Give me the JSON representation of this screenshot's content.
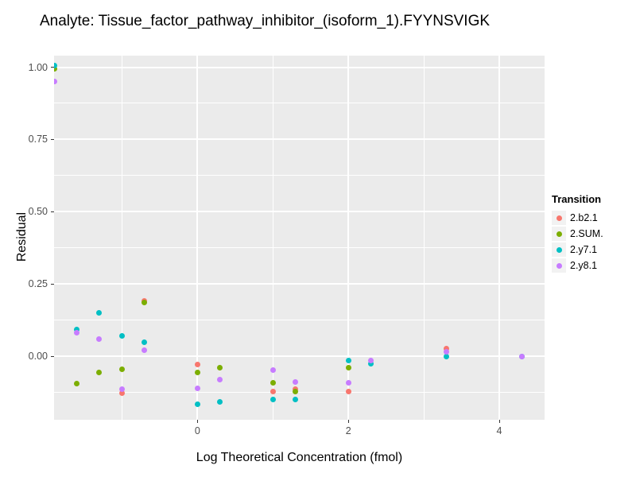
{
  "chart_data": {
    "type": "scatter",
    "title": "Analyte: Tissue_factor_pathway_inhibitor_(isoform_1).FYYNSVIGK",
    "xlabel": "Log Theoretical Concentration (fmol)",
    "ylabel": "Residual",
    "xlim": [
      -1.9,
      4.6
    ],
    "ylim": [
      -0.22,
      1.04
    ],
    "x_ticks": [
      {
        "value": 0,
        "label": "0"
      },
      {
        "value": 2,
        "label": "2"
      },
      {
        "value": 4,
        "label": "4"
      }
    ],
    "y_ticks": [
      {
        "value": 0.0,
        "label": "0.00"
      },
      {
        "value": 0.25,
        "label": "0.25"
      },
      {
        "value": 0.5,
        "label": "0.50"
      },
      {
        "value": 0.75,
        "label": "0.75"
      },
      {
        "value": 1.0,
        "label": "1.00"
      }
    ],
    "x_minor_ticks": [
      -1,
      1,
      3
    ],
    "y_minor_ticks": [
      -0.125,
      0.125,
      0.375,
      0.625,
      0.875
    ],
    "grid": "on",
    "panel_bg": "#EBEBEB",
    "grid_color": "#FFFFFF",
    "tick_color": "#333333",
    "legend": {
      "title": "Transition",
      "position": "right"
    },
    "series": [
      {
        "name": "2.b2.1",
        "color": "#F8766D",
        "points": [
          [
            -0.7,
            0.192
          ],
          [
            -1.0,
            -0.129
          ],
          [
            0.0,
            -0.03
          ],
          [
            1.0,
            -0.121
          ],
          [
            1.3,
            -0.113
          ],
          [
            2.0,
            -0.121
          ],
          [
            3.3,
            0.025
          ]
        ]
      },
      {
        "name": "2.SUM.",
        "color": "#7CAE00",
        "points": [
          [
            -1.9,
            0.995
          ],
          [
            -1.6,
            -0.096
          ],
          [
            -1.3,
            -0.055
          ],
          [
            -1.0,
            -0.044
          ],
          [
            -0.7,
            0.185
          ],
          [
            0.0,
            -0.055
          ],
          [
            0.3,
            -0.041
          ],
          [
            1.0,
            -0.091
          ],
          [
            1.3,
            -0.121
          ],
          [
            2.0,
            -0.041
          ]
        ]
      },
      {
        "name": "2.y7.1",
        "color": "#00BFC4",
        "points": [
          [
            -1.9,
            1.005
          ],
          [
            -1.6,
            0.093
          ],
          [
            -1.3,
            0.151
          ],
          [
            -1.0,
            0.071
          ],
          [
            -0.7,
            0.047
          ],
          [
            0.0,
            -0.165
          ],
          [
            0.3,
            -0.159
          ],
          [
            1.0,
            -0.151
          ],
          [
            1.3,
            -0.151
          ],
          [
            2.0,
            -0.014
          ],
          [
            2.3,
            -0.025
          ],
          [
            3.3,
            0.0
          ],
          [
            4.3,
            0.0
          ]
        ]
      },
      {
        "name": "2.y8.1",
        "color": "#C77CFF",
        "points": [
          [
            -1.9,
            0.951
          ],
          [
            -1.6,
            0.082
          ],
          [
            -1.3,
            0.058
          ],
          [
            -1.0,
            -0.115
          ],
          [
            -0.7,
            0.022
          ],
          [
            0.0,
            -0.11
          ],
          [
            0.3,
            -0.082
          ],
          [
            1.0,
            -0.047
          ],
          [
            1.3,
            -0.088
          ],
          [
            2.0,
            -0.091
          ],
          [
            2.3,
            -0.014
          ],
          [
            3.3,
            0.016
          ],
          [
            4.3,
            0.0
          ]
        ]
      }
    ]
  }
}
